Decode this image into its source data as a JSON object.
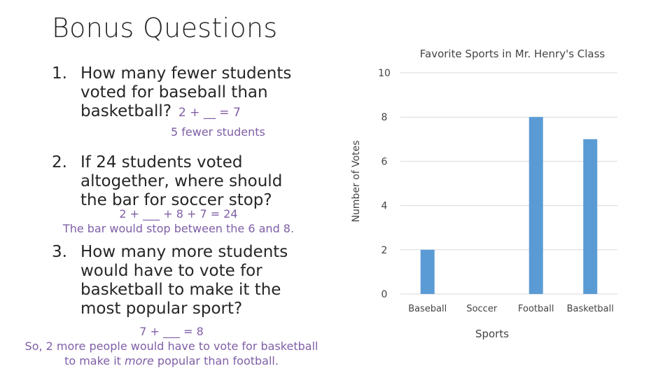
{
  "title": "Bonus Questions",
  "questions": [
    {
      "number": "1.",
      "text": "How many fewer students voted for baseball than basketball?",
      "equation": "2 + __ = 7",
      "answer": "5 fewer students"
    },
    {
      "number": "2.",
      "text": "If 24 students voted altogether, where should the bar for soccer stop?",
      "equation": "2 + ___ + 8 + 7 = 24",
      "answer": "The bar would stop between the 6 and 8."
    },
    {
      "number": "3.",
      "text": "How many more students would have to vote for basketball to make it the most popular sport?",
      "equation": "7 + ___ = 8",
      "answer_line1": "So, 2 more people would have to vote for basketball",
      "answer_line2_pre": "to make it ",
      "answer_line2_em": "more",
      "answer_line2_post": " popular than football."
    }
  ],
  "chart_data": {
    "type": "bar",
    "title": "Favorite Sports in Mr. Henry's Class",
    "xlabel": "Sports",
    "ylabel": "Number of Votes",
    "categories": [
      "Baseball",
      "Soccer",
      "Football",
      "Basketball"
    ],
    "values": [
      2,
      0,
      8,
      7
    ],
    "ylim": [
      0,
      10
    ],
    "yticks": [
      0,
      2,
      4,
      6,
      8,
      10
    ],
    "grid": true,
    "bar_color": "#5b9bd5",
    "grid_color": "#d9d9d9"
  }
}
